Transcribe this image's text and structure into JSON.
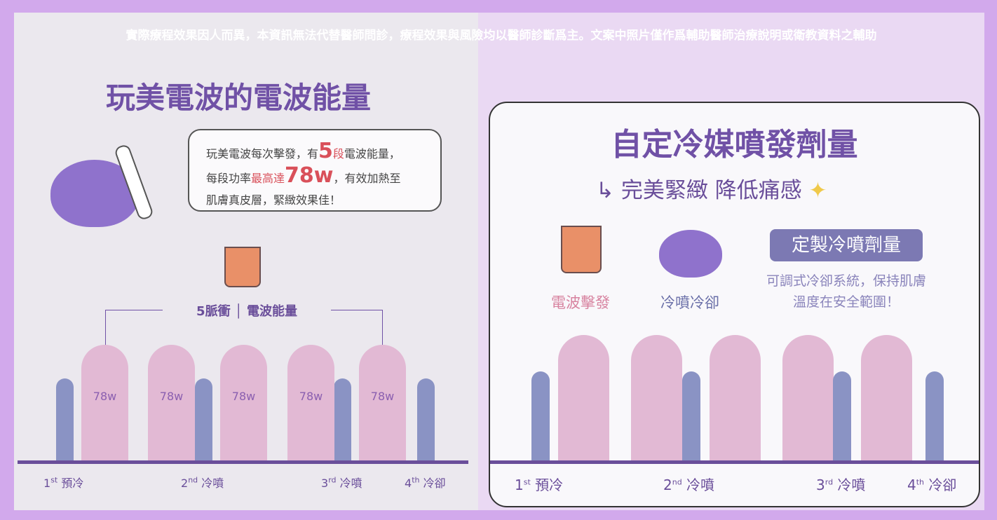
{
  "disclaimer": "實際療程效果因人而異，本資訊無法代替醫師問診，療程效果與風險均以醫師診斷爲主。文案中照片僅作爲輔助醫師治療說明或衛教資料之輔助",
  "left": {
    "title": "玩美電波的電波能量",
    "bubble": {
      "l1a": "玩美電波每次擊發，有",
      "l1b": "5",
      "l1c": "段",
      "l1d": "電波能量，",
      "l2a": "每段功率",
      "l2b": "最高達",
      "l2c": "78w",
      "l2d": "，有效加熱至",
      "l3": "肌膚真皮層，緊緻效果佳！"
    },
    "pulse_label": "5脈衝 │ 電波能量",
    "bar_labels": [
      "78w",
      "78w",
      "78w",
      "78w",
      "78w"
    ],
    "x_labels": [
      {
        "n": "1",
        "s": "st",
        "t": " 預冷"
      },
      {
        "n": "2",
        "s": "nd",
        "t": " 冷噴"
      },
      {
        "n": "3",
        "s": "rd",
        "t": " 冷噴"
      },
      {
        "n": "4",
        "s": "th",
        "t": " 冷卻"
      }
    ]
  },
  "right": {
    "title": "自定冷媒噴發劑量",
    "subtitle": "完美緊緻 降低痛感",
    "tag": "定製冷噴劑量",
    "tag_text": "可調式冷卻系統，保持肌膚溫度在安全範圍！",
    "legend_rf": "電波擊發",
    "legend_cool": "冷噴冷卻",
    "x_labels": [
      {
        "n": "1",
        "s": "st",
        "t": " 預冷"
      },
      {
        "n": "2",
        "s": "nd",
        "t": " 冷噴"
      },
      {
        "n": "3",
        "s": "rd",
        "t": " 冷噴"
      },
      {
        "n": "4",
        "s": "th",
        "t": " 冷卻"
      }
    ]
  },
  "colors": {
    "accent": "#7051a6",
    "cool_bar": "#8a93c4",
    "rf_bar": "#e2b9d4",
    "highlight": "#d9505a"
  }
}
